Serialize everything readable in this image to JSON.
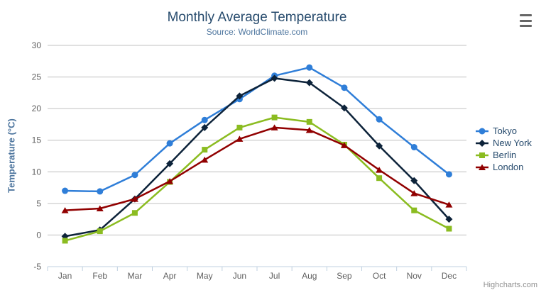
{
  "chart_data": {
    "type": "line",
    "title": "Monthly Average Temperature",
    "subtitle": "Source: WorldClimate.com",
    "categories": [
      "Jan",
      "Feb",
      "Mar",
      "Apr",
      "May",
      "Jun",
      "Jul",
      "Aug",
      "Sep",
      "Oct",
      "Nov",
      "Dec"
    ],
    "xlabel": "",
    "ylabel": "Temperature (°C)",
    "ylim": [
      -5,
      30
    ],
    "yticks": [
      -5,
      0,
      5,
      10,
      15,
      20,
      25,
      30
    ],
    "grid": "horizontal",
    "legend_position": "right",
    "series": [
      {
        "name": "Tokyo",
        "color": "#2f7ed8",
        "marker": "circle",
        "values": [
          7.0,
          6.9,
          9.5,
          14.5,
          18.2,
          21.5,
          25.2,
          26.5,
          23.3,
          18.3,
          13.9,
          9.6
        ]
      },
      {
        "name": "New York",
        "color": "#0d233a",
        "marker": "diamond",
        "values": [
          -0.2,
          0.8,
          5.7,
          11.3,
          17.0,
          22.0,
          24.8,
          24.1,
          20.1,
          14.1,
          8.6,
          2.5
        ]
      },
      {
        "name": "Berlin",
        "color": "#8bbc21",
        "marker": "square",
        "values": [
          -0.9,
          0.6,
          3.5,
          8.4,
          13.5,
          17.0,
          18.6,
          17.9,
          14.3,
          9.0,
          3.9,
          1.0
        ]
      },
      {
        "name": "London",
        "color": "#910000",
        "marker": "triangle",
        "values": [
          3.9,
          4.2,
          5.7,
          8.5,
          11.9,
          15.2,
          17.0,
          16.6,
          14.2,
          10.3,
          6.6,
          4.8
        ]
      }
    ]
  },
  "credits": {
    "label": "Highcharts.com"
  },
  "export_menu": {
    "icon": "hamburger-icon"
  },
  "colors": {
    "title": "#274b6d",
    "subtitle": "#4d759e",
    "axis_title": "#4d759e",
    "axis_label": "#606060",
    "grid_line": "#c0c0c0",
    "axis_line": "#c0d0e0",
    "legend_text": "#274b6d",
    "credits_text": "#909090",
    "background": "#ffffff",
    "export_icon": "#666666"
  }
}
